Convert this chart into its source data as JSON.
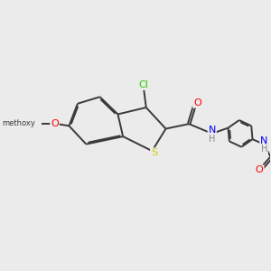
{
  "background_color": "#ebebeb",
  "bond_color": "#3a3a3a",
  "bond_width": 1.4,
  "atom_colors": {
    "C": "#3a3a3a",
    "Cl": "#22cc00",
    "O": "#ff0000",
    "N": "#0000ee",
    "S": "#cccc00",
    "H": "#888888"
  },
  "font_size": 7.5
}
